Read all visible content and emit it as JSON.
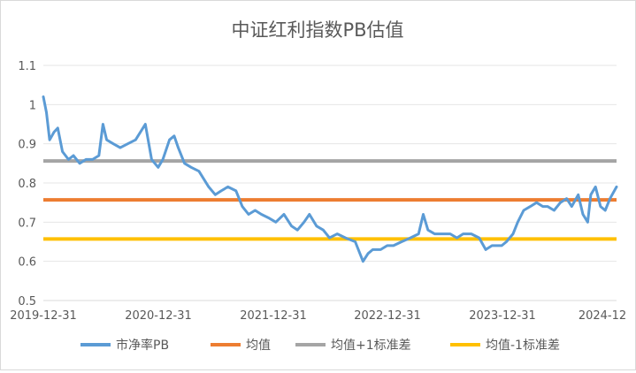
{
  "chart_data": {
    "type": "line",
    "title": "中证红利指数PB估值",
    "xlabel": "",
    "ylabel": "",
    "x_ticks": [
      "2019-12-31",
      "2020-12-31",
      "2021-12-31",
      "2022-12-31",
      "2023-12-31",
      "2024-12"
    ],
    "x_range": [
      "2019-12-31",
      "2024-12-31"
    ],
    "y_ticks": [
      0.5,
      0.6,
      0.7,
      0.8,
      0.9,
      1,
      1.1
    ],
    "ylim": [
      0.5,
      1.1
    ],
    "grid": "horizontal",
    "legend_position": "bottom",
    "series": [
      {
        "name": "市净率PB",
        "color": "#5b9bd5",
        "kind": "line",
        "x": [
          "2019-12-31",
          "2020-01-10",
          "2020-01-20",
          "2020-02-03",
          "2020-02-15",
          "2020-03-01",
          "2020-03-20",
          "2020-04-05",
          "2020-04-25",
          "2020-05-15",
          "2020-06-05",
          "2020-06-25",
          "2020-07-08",
          "2020-07-20",
          "2020-08-10",
          "2020-09-01",
          "2020-09-25",
          "2020-10-20",
          "2020-11-20",
          "2020-12-10",
          "2020-12-31",
          "2021-01-15",
          "2021-02-05",
          "2021-02-20",
          "2021-03-05",
          "2021-03-25",
          "2021-04-15",
          "2021-05-10",
          "2021-06-10",
          "2021-07-01",
          "2021-07-20",
          "2021-08-10",
          "2021-09-05",
          "2021-09-25",
          "2021-10-15",
          "2021-11-05",
          "2021-11-25",
          "2021-12-20",
          "2022-01-10",
          "2022-02-05",
          "2022-03-01",
          "2022-03-20",
          "2022-04-10",
          "2022-04-27",
          "2022-05-20",
          "2022-06-10",
          "2022-06-30",
          "2022-07-25",
          "2022-08-20",
          "2022-09-20",
          "2022-10-15",
          "2022-10-31",
          "2022-11-15",
          "2022-12-10",
          "2022-12-31",
          "2023-01-20",
          "2023-02-15",
          "2023-03-15",
          "2023-04-10",
          "2023-04-25",
          "2023-05-10",
          "2023-05-31",
          "2023-06-25",
          "2023-07-20",
          "2023-08-10",
          "2023-08-30",
          "2023-09-25",
          "2023-10-20",
          "2023-11-10",
          "2023-11-30",
          "2023-12-31",
          "2024-01-15",
          "2024-02-05",
          "2024-02-20",
          "2024-03-10",
          "2024-03-31",
          "2024-04-20",
          "2024-05-10",
          "2024-05-25",
          "2024-06-15",
          "2024-07-05",
          "2024-07-25",
          "2024-08-10",
          "2024-08-31",
          "2024-09-15",
          "2024-09-30",
          "2024-10-10",
          "2024-10-25",
          "2024-11-10",
          "2024-11-25",
          "2024-12-10",
          "2024-12-31"
        ],
        "values": [
          1.02,
          0.98,
          0.91,
          0.93,
          0.94,
          0.88,
          0.86,
          0.87,
          0.85,
          0.86,
          0.86,
          0.87,
          0.95,
          0.91,
          0.9,
          0.89,
          0.9,
          0.91,
          0.95,
          0.86,
          0.84,
          0.86,
          0.91,
          0.92,
          0.89,
          0.85,
          0.84,
          0.83,
          0.79,
          0.77,
          0.78,
          0.79,
          0.78,
          0.74,
          0.72,
          0.73,
          0.72,
          0.71,
          0.7,
          0.72,
          0.69,
          0.68,
          0.7,
          0.72,
          0.69,
          0.68,
          0.66,
          0.67,
          0.66,
          0.65,
          0.6,
          0.62,
          0.63,
          0.63,
          0.64,
          0.64,
          0.65,
          0.66,
          0.67,
          0.72,
          0.68,
          0.67,
          0.67,
          0.67,
          0.66,
          0.67,
          0.67,
          0.66,
          0.63,
          0.64,
          0.64,
          0.65,
          0.67,
          0.7,
          0.73,
          0.74,
          0.75,
          0.74,
          0.74,
          0.73,
          0.75,
          0.76,
          0.74,
          0.77,
          0.72,
          0.7,
          0.77,
          0.79,
          0.74,
          0.73,
          0.76,
          0.79
        ]
      },
      {
        "name": "均值",
        "color": "#ed7d31",
        "kind": "hline",
        "value": 0.757
      },
      {
        "name": "均值+1标准差",
        "color": "#a5a5a5",
        "kind": "hline",
        "value": 0.856
      },
      {
        "name": "均值-1标准差",
        "color": "#ffc000",
        "kind": "hline",
        "value": 0.657
      }
    ]
  }
}
